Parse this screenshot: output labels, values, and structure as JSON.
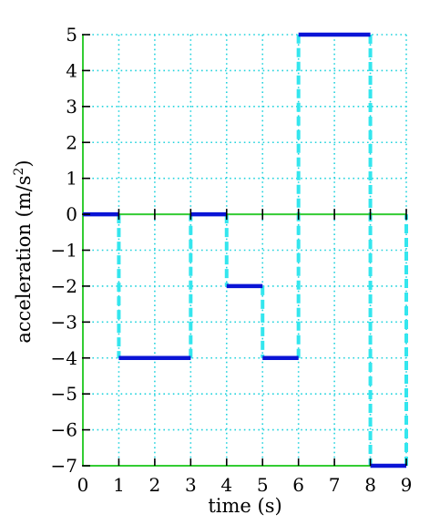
{
  "chart_data": {
    "type": "line",
    "title": "",
    "xlabel": "time (s)",
    "ylabel": "acceleration (m/s²)",
    "ylabel_parts": {
      "main": "acceleration (m/s",
      "sup": "2",
      "close": ")"
    },
    "xlim": [
      0,
      9
    ],
    "ylim": [
      -7,
      5
    ],
    "x_ticks": [
      0,
      1,
      2,
      3,
      4,
      5,
      6,
      7,
      8,
      9
    ],
    "y_ticks": [
      5,
      4,
      3,
      2,
      1,
      0,
      -1,
      -2,
      -3,
      -4,
      -5,
      -6,
      -7
    ],
    "y_tick_labels": [
      "5",
      "4",
      "3",
      "2",
      "1",
      "0",
      "−1",
      "−2",
      "−3",
      "−4",
      "−5",
      "−6",
      "−7"
    ],
    "grid": true,
    "series": [
      {
        "segments": [
          {
            "x0": 0,
            "x1": 1,
            "y": 0
          },
          {
            "x0": 1,
            "x1": 3,
            "y": -4
          },
          {
            "x0": 3,
            "x1": 4,
            "y": 0
          },
          {
            "x0": 4,
            "x1": 5,
            "y": -2
          },
          {
            "x0": 5,
            "x1": 6,
            "y": -4
          },
          {
            "x0": 6,
            "x1": 8,
            "y": 5
          },
          {
            "x0": 8,
            "x1": 9,
            "y": -7
          }
        ]
      }
    ],
    "transitions": [
      {
        "x": 1,
        "y0": 0,
        "y1": -4
      },
      {
        "x": 3,
        "y0": -4,
        "y1": 0
      },
      {
        "x": 4,
        "y0": 0,
        "y1": -2
      },
      {
        "x": 5,
        "y0": -2,
        "y1": -4
      },
      {
        "x": 6,
        "y0": -4,
        "y1": 5
      },
      {
        "x": 8,
        "y0": 5,
        "y1": -7
      },
      {
        "x": 9,
        "y0": -7,
        "y1": 0
      }
    ],
    "colors": {
      "axes": "#33cc33",
      "grid": "#22d3dd",
      "series": "#0a14d6",
      "transitions": "#33e6ee",
      "ticks": "#000000"
    }
  }
}
